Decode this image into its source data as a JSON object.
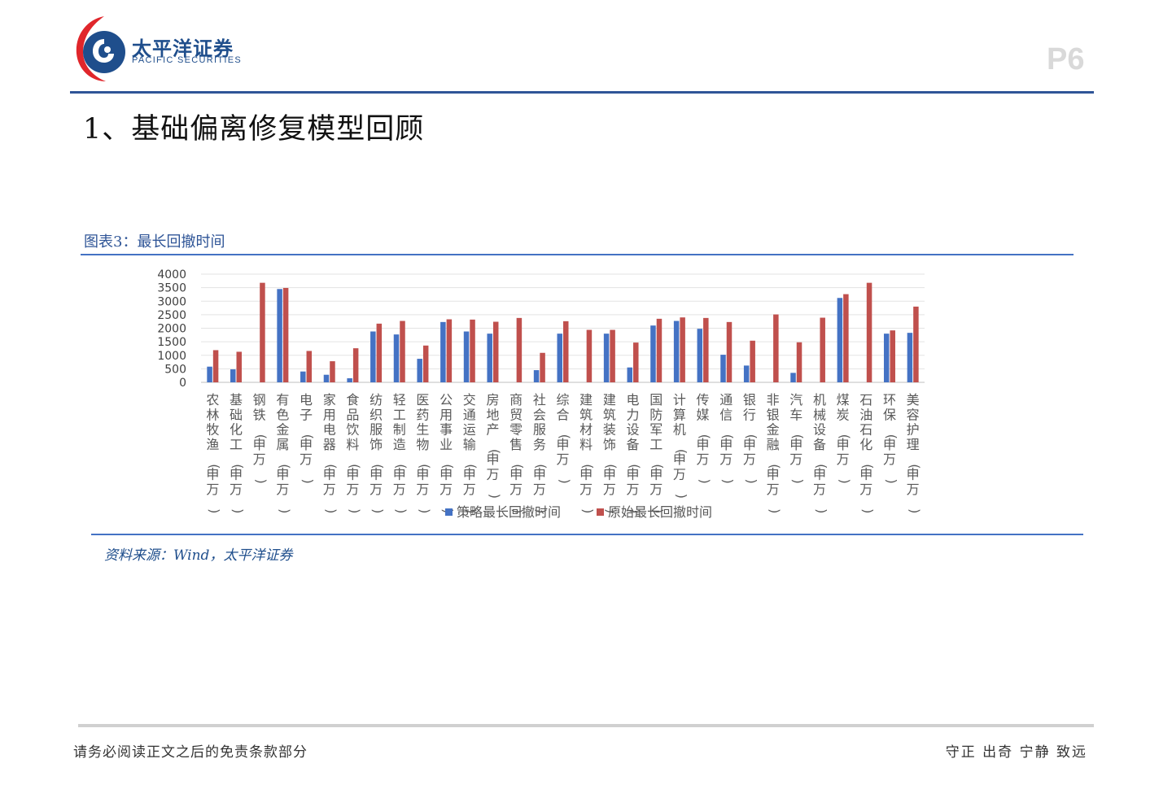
{
  "header": {
    "brand_cn": "太平洋证券",
    "brand_en": "PACIFIC SECURITIES",
    "page_number": "P6",
    "logo_icon": "pacific-securities-logo-icon",
    "colors": {
      "brand": "#1f4e8c",
      "logo_red": "#e0262b",
      "rule": "#2f5597"
    }
  },
  "section_title": "1、基础偏离修复模型回顾",
  "figure_label": "图表3：最长回撤时间",
  "source": "资料来源：Wind，太平洋证券",
  "footer": {
    "left": "请务必阅读正文之后的免责条款部分",
    "right": "守正 出奇 宁静 致远"
  },
  "chart_data": {
    "type": "bar",
    "title": "",
    "xlabel": "",
    "ylabel": "",
    "ylim": [
      0,
      4000
    ],
    "yticks": [
      "4000",
      "3500",
      "3000",
      "2500",
      "2000",
      "1500",
      "1000",
      "500",
      "0"
    ],
    "grid": true,
    "legend_position": "bottom",
    "categories": [
      "农林牧渔(申万)",
      "基础化工(申万)",
      "钢铁(申万)",
      "有色金属(申万)",
      "电子(申万)",
      "家用电器(申万)",
      "食品饮料(申万)",
      "纺织服饰(申万)",
      "轻工制造(申万)",
      "医药生物(申万)",
      "公用事业(申万)",
      "交通运输(申万)",
      "房地产(申万)",
      "商贸零售(申万)",
      "社会服务(申万)",
      "综合(申万)",
      "建筑材料(申万)",
      "建筑装饰(申万)",
      "电力设备(申万)",
      "国防军工(申万)",
      "计算机(申万)",
      "传媒(申万)",
      "通信(申万)",
      "银行(申万)",
      "非银金融(申万)",
      "汽车(申万)",
      "机械设备(申万)",
      "煤炭(申万)",
      "石油石化(申万)",
      "环保(申万)",
      "美容护理(申万)"
    ],
    "series": [
      {
        "name": "策略最长回撤时间",
        "color": "#4472c4",
        "values": [
          580,
          480,
          0,
          3450,
          400,
          280,
          150,
          1880,
          1770,
          870,
          2230,
          1880,
          1800,
          0,
          450,
          1800,
          0,
          1800,
          550,
          2100,
          2270,
          1980,
          1020,
          620,
          0,
          350,
          0,
          3120,
          0,
          1800,
          1830
        ]
      },
      {
        "name": "原始最长回撤时间",
        "color": "#c0504d",
        "values": [
          1190,
          1130,
          3680,
          3490,
          1160,
          780,
          1260,
          2170,
          2270,
          1360,
          2330,
          2320,
          2240,
          2380,
          1090,
          2260,
          1940,
          1940,
          1470,
          2350,
          2400,
          2380,
          2230,
          1540,
          2510,
          1480,
          2390,
          3260,
          3680,
          1920,
          2800
        ]
      }
    ]
  }
}
